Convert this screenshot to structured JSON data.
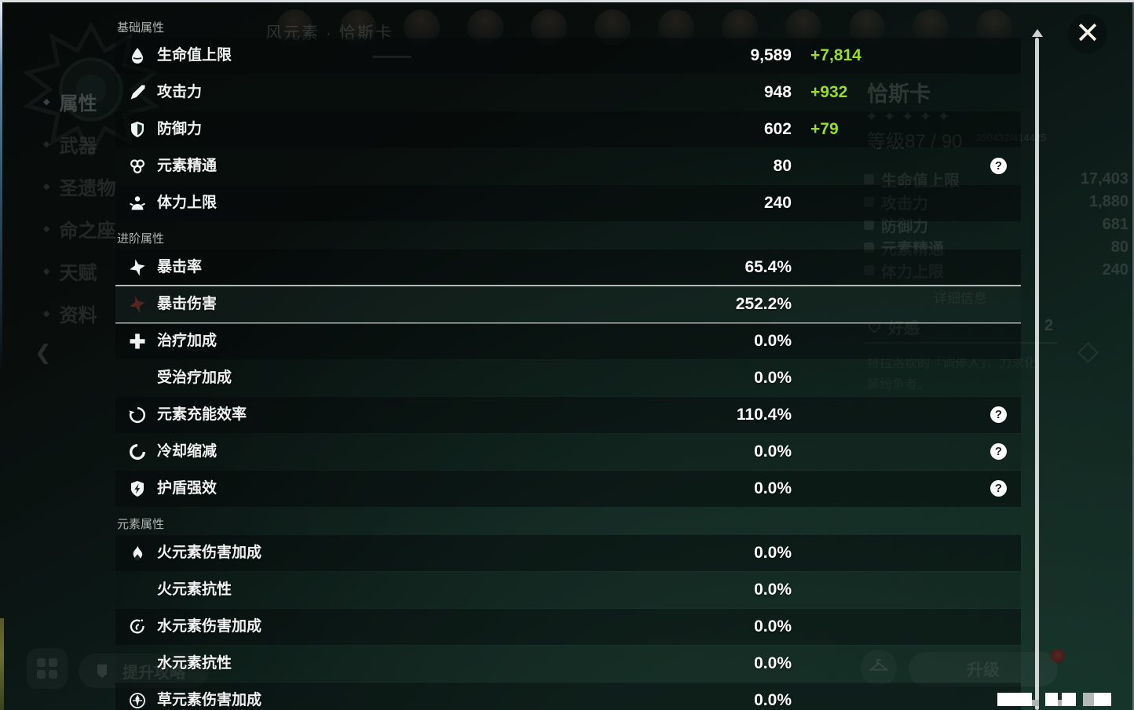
{
  "glyphs": {
    "star": "✦",
    "bullet": "◆",
    "help": "?",
    "close": "✕",
    "chevron_left": "❮"
  },
  "colors": {
    "bonus_green": "#98e01f"
  },
  "panel": {
    "sections": [
      {
        "title": "基础属性",
        "rows": [
          {
            "icon": "hp-icon",
            "label": "生命值上限",
            "value": "9,589",
            "bonus": "+7,814"
          },
          {
            "icon": "atk-icon",
            "label": "攻击力",
            "value": "948",
            "bonus": "+932"
          },
          {
            "icon": "def-icon",
            "label": "防御力",
            "value": "602",
            "bonus": "+79"
          },
          {
            "icon": "elemental-mastery-icon",
            "label": "元素精通",
            "value": "80",
            "help": true
          },
          {
            "icon": "stamina-icon",
            "label": "体力上限",
            "value": "240"
          }
        ]
      },
      {
        "title": "进阶属性",
        "rows": [
          {
            "icon": "crit-rate-icon",
            "label": "暴击率",
            "value": "65.4%"
          },
          {
            "icon": "crit-dmg-icon",
            "label": "暴击伤害",
            "value": "252.2%",
            "highlighted": true
          },
          {
            "icon": "healing-bonus-icon",
            "label": "治疗加成",
            "value": "0.0%"
          },
          {
            "icon": null,
            "label": "受治疗加成",
            "value": "0.0%"
          },
          {
            "icon": "energy-recharge-icon",
            "label": "元素充能效率",
            "value": "110.4%",
            "help": true
          },
          {
            "icon": "cooldown-icon",
            "label": "冷却缩减",
            "value": "0.0%",
            "help": true
          },
          {
            "icon": "shield-strength-icon",
            "label": "护盾强效",
            "value": "0.0%",
            "help": true
          }
        ]
      },
      {
        "title": "元素属性",
        "rows": [
          {
            "icon": "pyro-icon",
            "label": "火元素伤害加成",
            "value": "0.0%"
          },
          {
            "icon": null,
            "label": "火元素抗性",
            "value": "0.0%"
          },
          {
            "icon": "hydro-icon",
            "label": "水元素伤害加成",
            "value": "0.0%"
          },
          {
            "icon": null,
            "label": "水元素抗性",
            "value": "0.0%"
          },
          {
            "icon": "dendro-icon",
            "label": "草元素伤害加成",
            "value": "0.0%"
          }
        ]
      }
    ]
  },
  "background": {
    "element_label": "风元素 · 恰斯卡",
    "sidebar": [
      "属性",
      "武器",
      "圣遗物",
      "命之座",
      "天赋",
      "资料"
    ],
    "avatar_count": 12,
    "character": {
      "name": "恰斯卡",
      "stars": 5,
      "level_label": "等级87 / 90",
      "exp": "350432/414425"
    },
    "stats": [
      {
        "label": "生命值上限",
        "value": "17,403"
      },
      {
        "label": "攻击力",
        "value": "1,880"
      },
      {
        "label": "防御力",
        "value": "681"
      },
      {
        "label": "元素精通",
        "value": "80"
      },
      {
        "label": "体力上限",
        "value": "240"
      }
    ],
    "detail_header": "详细信息",
    "friendship_label": "好感",
    "friendship_value": "2",
    "description_lines": [
      "特拉洛坎的「调停人」，力求化",
      "解纷争者。"
    ],
    "promote_button": "提升攻略",
    "levelup_button": "升级"
  }
}
